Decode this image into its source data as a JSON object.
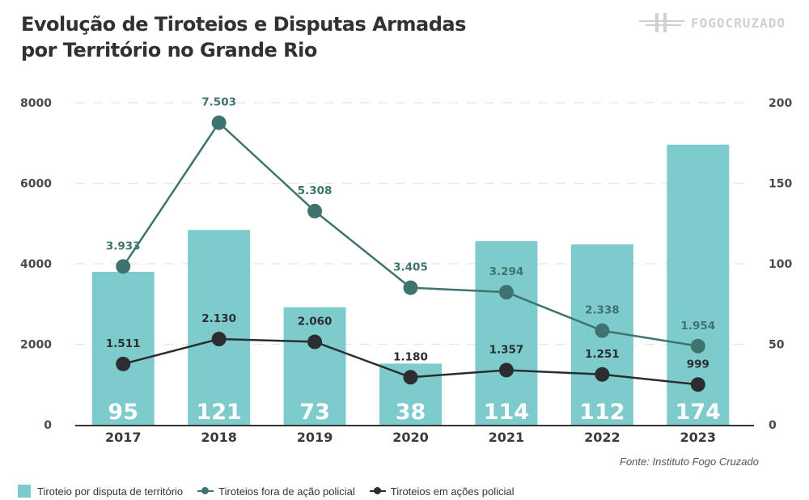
{
  "header": {
    "title_line1": "Evolução de Tiroteios e Disputas Armadas",
    "title_line2": "por Território no Grande Rio",
    "logo_text": "FOGOCRUZADO"
  },
  "source": "Fonte: Instituto Fogo Cruzado",
  "colors": {
    "bars": "#7ecbcc",
    "fora_line": "#3f7370",
    "em_line": "#2b2d30",
    "axis_text": "#4a4a4a",
    "grid": "#e3e3e3"
  },
  "chart_data": {
    "type": "bar",
    "title": "Evolução de Tiroteios e Disputas Armadas por Território no Grande Rio",
    "categories": [
      "2017",
      "2018",
      "2019",
      "2020",
      "2021",
      "2022",
      "2023"
    ],
    "left_axis": {
      "ylim": [
        0,
        8000
      ],
      "ticks": [
        "0",
        "2000",
        "4000",
        "6000",
        "8000"
      ]
    },
    "right_axis": {
      "ylim": [
        0,
        200
      ],
      "ticks": [
        "0",
        "50",
        "100",
        "150",
        "200"
      ]
    },
    "grid": true,
    "legend_position": "bottom-left",
    "series": [
      {
        "name": "Tiroteio por disputa de território",
        "type": "bar",
        "axis": "right",
        "values": [
          95,
          121,
          73,
          38,
          114,
          112,
          174
        ],
        "labels": [
          "95",
          "121",
          "73",
          "38",
          "114",
          "112",
          "174"
        ]
      },
      {
        "name": "Tiroteios fora de ação policial",
        "type": "line",
        "axis": "left",
        "values": [
          3933,
          7503,
          5308,
          3405,
          3294,
          2338,
          1954
        ],
        "labels": [
          "3.933",
          "7.503",
          "5.308",
          "3.405",
          "3.294",
          "2.338",
          "1.954"
        ]
      },
      {
        "name": "Tiroteios em ações policial",
        "type": "line",
        "axis": "left",
        "values": [
          1511,
          2130,
          2060,
          1180,
          1357,
          1251,
          999
        ],
        "labels": [
          "1.511",
          "2.130",
          "2.060",
          "1.180",
          "1.357",
          "1.251",
          "999"
        ]
      }
    ]
  },
  "legend": [
    {
      "label": "Tiroteio por disputa de território"
    },
    {
      "label": "Tiroteios fora de ação policial"
    },
    {
      "label": "Tiroteios em ações policial"
    }
  ]
}
